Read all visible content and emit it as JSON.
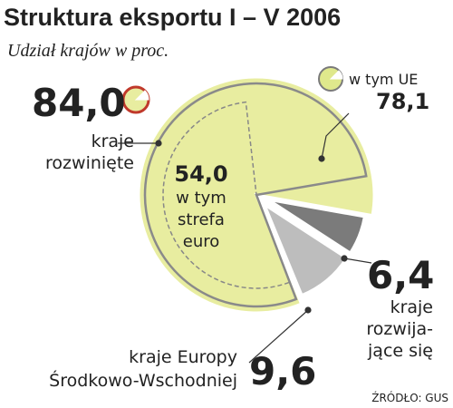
{
  "chart_data": {
    "type": "pie",
    "title": "Struktura eksportu I – V 2006",
    "subtitle": "Udział krajów w proc.",
    "categories": [
      "kraje\nrozwinięte",
      "kraje\nrozwija-\njące się",
      "kraje Europy\nŚrodkowo-Wschodniej"
    ],
    "values": [
      84.0,
      6.4,
      9.6
    ],
    "value_labels": [
      "84,0",
      "6,4",
      "9,6"
    ],
    "colors": [
      "#e8eda0",
      "#7b7b7b",
      "#bdbdbd"
    ],
    "subsets": [
      {
        "label": "w tym UE",
        "value": 78.1,
        "value_label": "78,1"
      },
      {
        "label": "w tym\nstrefa\neuro",
        "value": 54.0,
        "value_label": "54,0"
      }
    ],
    "source": "ŹRÓDŁO: GUS"
  }
}
